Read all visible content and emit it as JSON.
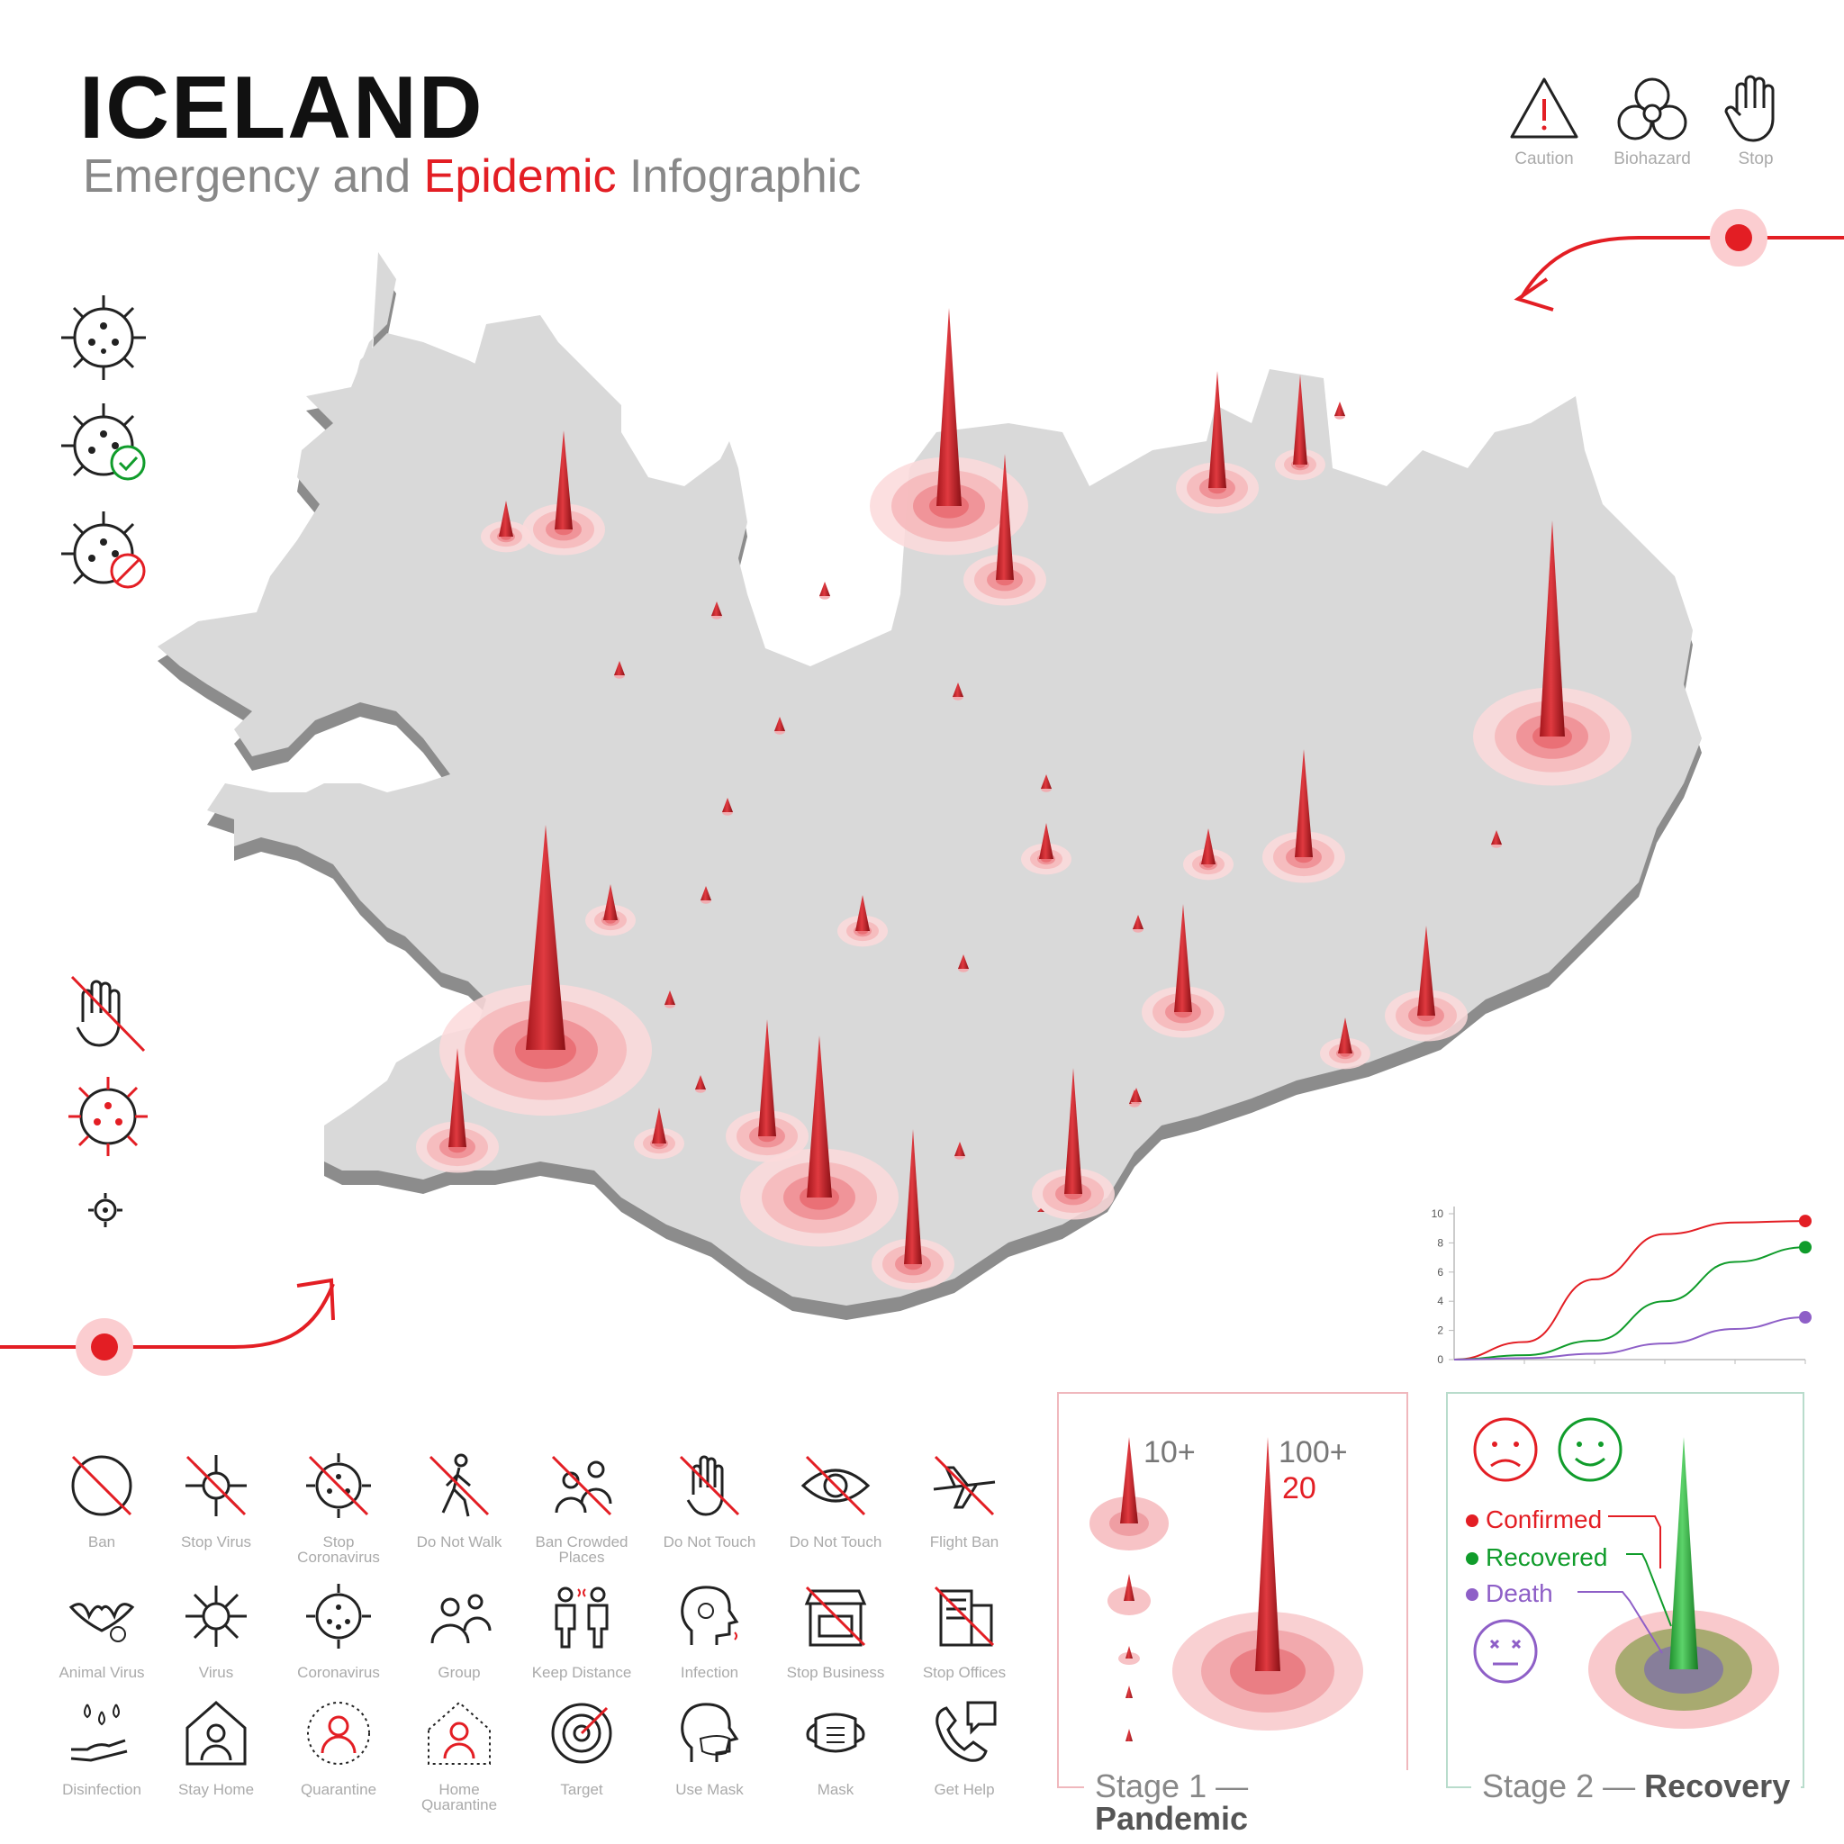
{
  "header": {
    "title": "ICELAND",
    "subtitle_a": "Emergency and ",
    "subtitle_accent": "Epidemic",
    "subtitle_b": " Infographic"
  },
  "hazards": [
    {
      "label": "Caution",
      "icon": "caution-icon"
    },
    {
      "label": "Biohazard",
      "icon": "biohazard-icon"
    },
    {
      "label": "Stop",
      "icon": "stop-hand-icon"
    }
  ],
  "icons": [
    {
      "label": "Ban",
      "icon": "ban-icon"
    },
    {
      "label": "Stop Virus",
      "icon": "stop-virus-icon"
    },
    {
      "label": "Stop Coronavirus",
      "icon": "stop-coronavirus-icon"
    },
    {
      "label": "Do Not Walk",
      "icon": "do-not-walk-icon"
    },
    {
      "label": "Ban Crowded Places",
      "icon": "ban-crowded-places-icon"
    },
    {
      "label": "Do Not Touch",
      "icon": "do-not-touch-icon"
    },
    {
      "label": "Do Not Touch",
      "icon": "do-not-touch-eye-icon"
    },
    {
      "label": "Flight Ban",
      "icon": "flight-ban-icon"
    },
    {
      "label": "Animal Virus",
      "icon": "animal-virus-icon"
    },
    {
      "label": "Virus",
      "icon": "virus-icon"
    },
    {
      "label": "Coronavirus",
      "icon": "coronavirus-icon"
    },
    {
      "label": "Group",
      "icon": "group-icon"
    },
    {
      "label": "Keep Distance",
      "icon": "keep-distance-icon"
    },
    {
      "label": "Infection",
      "icon": "infection-icon"
    },
    {
      "label": "Stop Business",
      "icon": "stop-business-icon"
    },
    {
      "label": "Stop Offices",
      "icon": "stop-offices-icon"
    },
    {
      "label": "Disinfection",
      "icon": "disinfection-icon"
    },
    {
      "label": "Stay Home",
      "icon": "stay-home-icon"
    },
    {
      "label": "Quarantine",
      "icon": "quarantine-icon"
    },
    {
      "label": "Home Quarantine",
      "icon": "home-quarantine-icon"
    },
    {
      "label": "Target",
      "icon": "target-icon"
    },
    {
      "label": "Use Mask",
      "icon": "use-mask-icon"
    },
    {
      "label": "Mask",
      "icon": "mask-icon"
    },
    {
      "label": "Get Help",
      "icon": "get-help-icon"
    }
  ],
  "chart_data": {
    "type": "line",
    "ylim": [
      0,
      10
    ],
    "yticks": [
      "0",
      "2",
      "4",
      "6",
      "8",
      "10"
    ],
    "x": [
      0,
      1,
      2,
      3,
      4,
      5
    ],
    "series": [
      {
        "color": "#e31e24",
        "values": [
          0,
          1.2,
          5.5,
          8.6,
          9.4,
          9.5
        ]
      },
      {
        "color": "#109c2b",
        "values": [
          0,
          0.3,
          1.3,
          4.0,
          6.7,
          7.7
        ]
      },
      {
        "color": "#8e5fc7",
        "values": [
          0,
          0.1,
          0.4,
          1.1,
          2.1,
          2.9
        ]
      }
    ]
  },
  "stage1": {
    "title_a": "Stage 1 — ",
    "title_b": "Pandemic",
    "small_count": "10+",
    "big_count": "100+",
    "big_count_red": "20"
  },
  "stage2": {
    "title_a": "Stage 2 — ",
    "title_b": "Recovery",
    "legend": [
      {
        "label": "Confirmed",
        "color": "#e31e24"
      },
      {
        "label": "Recovered",
        "color": "#109c2b"
      },
      {
        "label": "Death",
        "color": "#8e5fc7"
      }
    ]
  },
  "colors": {
    "accent": "#e31e24",
    "land": "#d9d9d9",
    "land_shadow": "#8c8c8c",
    "frame_stage1": "#f0b8bd",
    "frame_stage2": "#b9dccc"
  }
}
